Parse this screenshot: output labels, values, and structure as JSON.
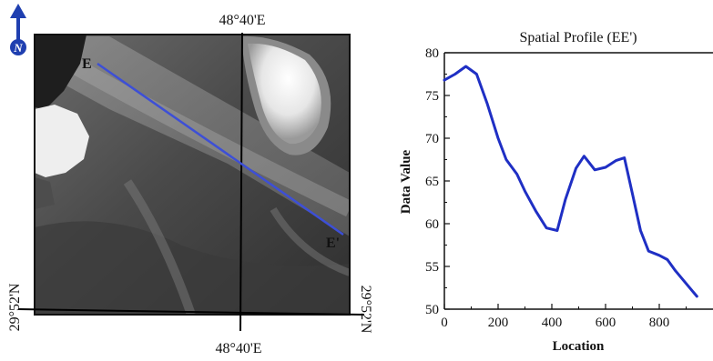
{
  "map": {
    "top_longitude": "48°40'E",
    "bottom_longitude": "48°40'E",
    "left_latitude": "29°52'N",
    "right_latitude": "29°52'N",
    "north_letter": "N",
    "profile_start": "E",
    "profile_end": "E'",
    "north_arrow_icon": "north-arrow-icon",
    "profile_color": "#3d4fd6",
    "arrow_color": "#1f3fb0"
  },
  "chart_data": {
    "type": "line",
    "title": "Spatial Profile (EE')",
    "xlabel": "Location",
    "ylabel": "Data Value",
    "xlim": [
      0,
      1000
    ],
    "ylim": [
      50,
      80
    ],
    "xticks": [
      0,
      200,
      400,
      600,
      800
    ],
    "yticks": [
      50,
      55,
      60,
      65,
      70,
      75,
      80
    ],
    "grid": false,
    "line_color": "#1f2fc4",
    "series": [
      {
        "x": [
          0,
          40,
          80,
          120,
          160,
          200,
          230,
          270,
          300,
          340,
          380,
          420,
          450,
          490,
          520,
          560,
          600,
          640,
          670,
          700,
          730,
          760,
          800,
          830,
          860,
          900,
          940
        ],
        "y": [
          76.8,
          77.5,
          78.4,
          77.5,
          74,
          70,
          67.5,
          65.8,
          63.8,
          61.5,
          59.5,
          59.2,
          62.8,
          66.5,
          67.9,
          66.3,
          66.6,
          67.4,
          67.7,
          63.5,
          59.2,
          56.8,
          56.3,
          55.8,
          54.5,
          53,
          51.5
        ]
      }
    ]
  }
}
